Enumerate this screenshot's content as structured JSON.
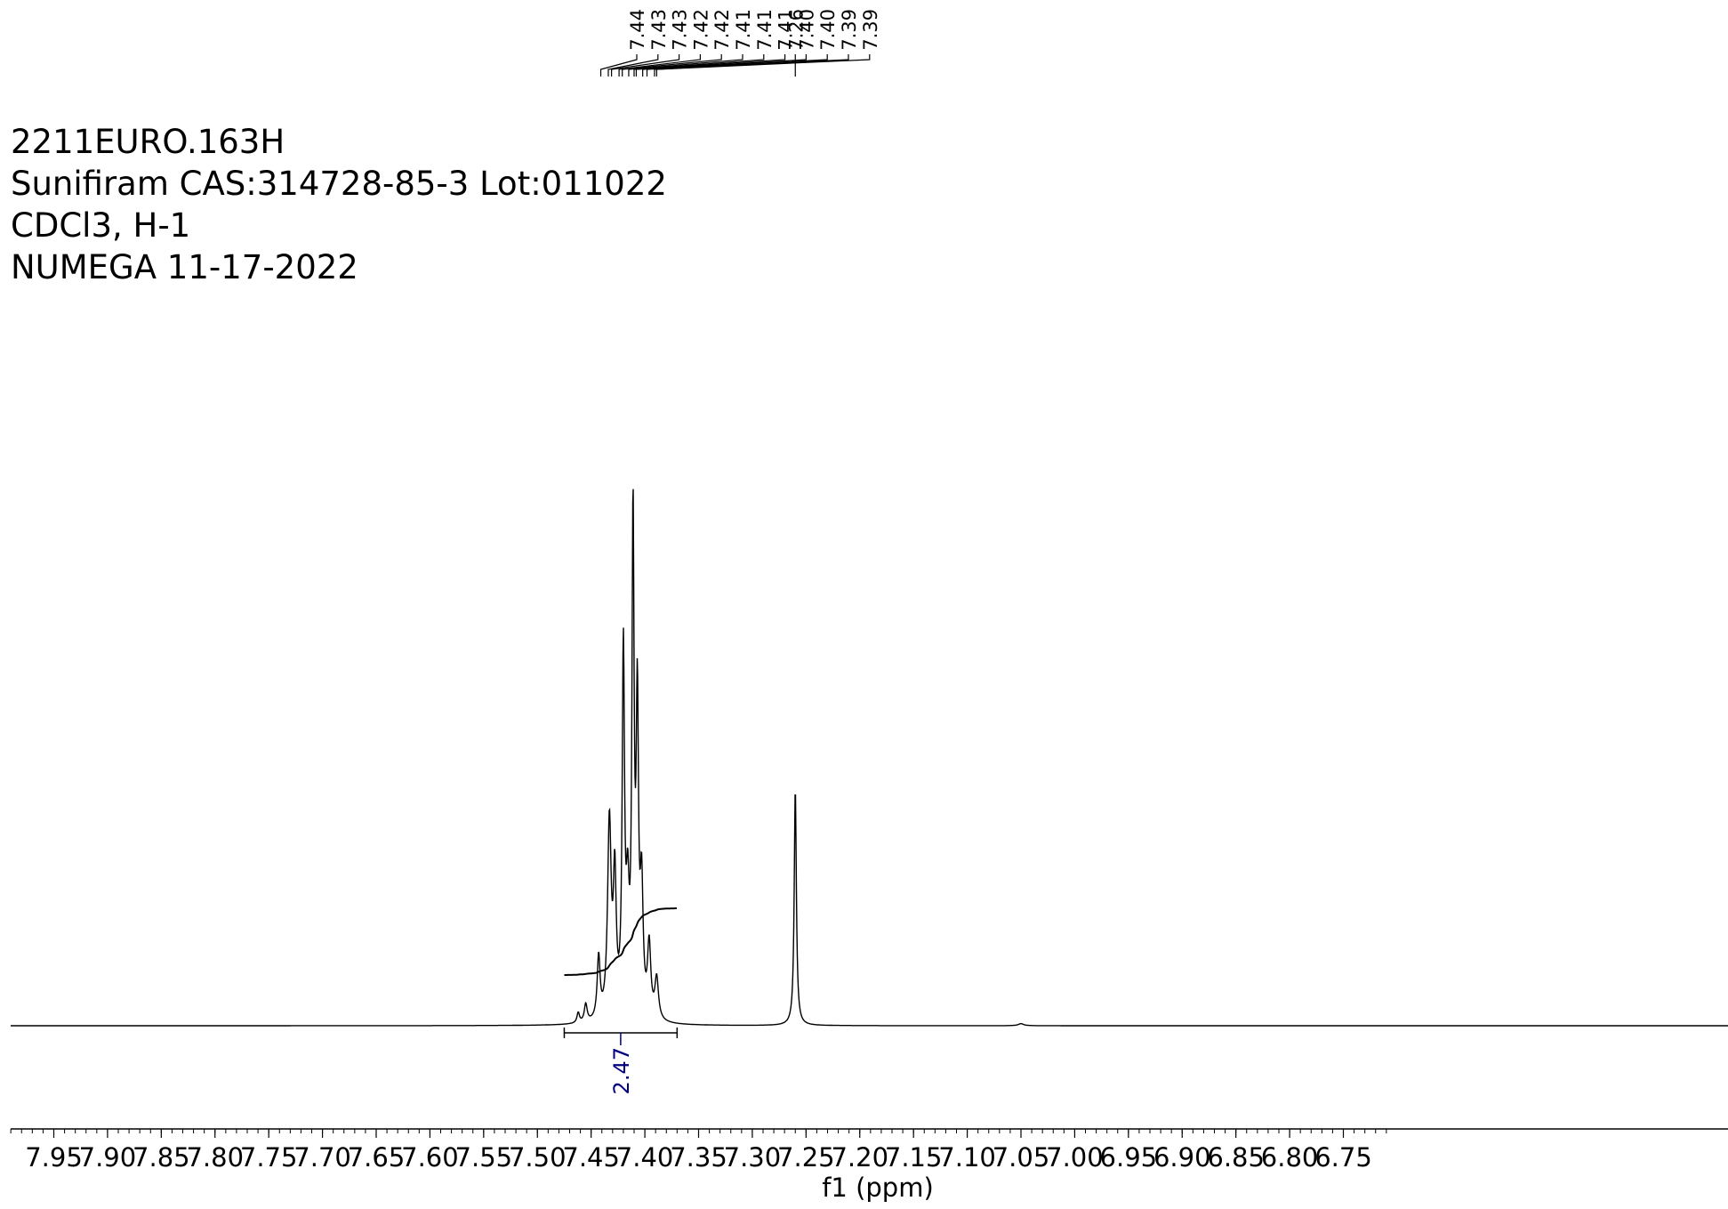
{
  "header": {
    "line1": "2211EURO.163H",
    "line2": "Sunifiram CAS:314728-85-3 Lot:011022",
    "line3": "CDCl3, H-1",
    "line4": "NUMEGA 11-17-2022"
  },
  "chart_data": {
    "type": "line",
    "title": "",
    "xlabel": "f1 (ppm)",
    "ylabel": "",
    "x_reversed": true,
    "xlim": [
      7.99,
      6.71
    ],
    "x_ticks": [
      7.95,
      7.9,
      7.85,
      7.8,
      7.75,
      7.7,
      7.65,
      7.6,
      7.55,
      7.5,
      7.45,
      7.4,
      7.35,
      7.3,
      7.25,
      7.2,
      7.15,
      7.1,
      7.05,
      7.0,
      6.95,
      6.9,
      6.85,
      6.8,
      6.75
    ],
    "x_tick_labels": [
      "7.95",
      "7.90",
      "7.85",
      "7.80",
      "7.75",
      "7.70",
      "7.65",
      "7.60",
      "7.55",
      "7.50",
      "7.45",
      "7.40",
      "7.35",
      "7.30",
      "7.25",
      "7.20",
      "7.15",
      "7.10",
      "7.05",
      "7.00",
      "6.95",
      "6.90",
      "6.85",
      "6.80",
      "6.75"
    ],
    "grid": false,
    "peak_labels": [
      "7.44",
      "7.43",
      "7.43",
      "7.42",
      "7.42",
      "7.41",
      "7.41",
      "7.41",
      "7.40",
      "7.40",
      "7.39",
      "7.39",
      "7.26"
    ],
    "peak_positions": [
      7.441,
      7.434,
      7.431,
      7.424,
      7.421,
      7.415,
      7.41,
      7.408,
      7.402,
      7.398,
      7.391,
      7.389,
      7.26
    ],
    "spectrum_peaks": [
      {
        "ppm": 7.462,
        "height": 0.02,
        "width": 0.0014
      },
      {
        "ppm": 7.455,
        "height": 0.035,
        "width": 0.0016
      },
      {
        "ppm": 7.443,
        "height": 0.12,
        "width": 0.0016
      },
      {
        "ppm": 7.433,
        "height": 0.38,
        "width": 0.002
      },
      {
        "ppm": 7.428,
        "height": 0.26,
        "width": 0.0016
      },
      {
        "ppm": 7.42,
        "height": 0.7,
        "width": 0.0013
      },
      {
        "ppm": 7.416,
        "height": 0.2,
        "width": 0.0016
      },
      {
        "ppm": 7.411,
        "height": 0.95,
        "width": 0.0012
      },
      {
        "ppm": 7.407,
        "height": 0.58,
        "width": 0.0013
      },
      {
        "ppm": 7.403,
        "height": 0.24,
        "width": 0.0016
      },
      {
        "ppm": 7.396,
        "height": 0.14,
        "width": 0.0018
      },
      {
        "ppm": 7.389,
        "height": 0.08,
        "width": 0.002
      },
      {
        "ppm": 7.26,
        "height": 0.46,
        "width": 0.0012
      },
      {
        "ppm": 7.05,
        "height": 0.004,
        "width": 0.003
      }
    ],
    "integrals": [
      {
        "from": 7.475,
        "to": 7.37,
        "value": "2.47"
      }
    ],
    "color": "#000000",
    "integral_label_color": "#00007f"
  }
}
